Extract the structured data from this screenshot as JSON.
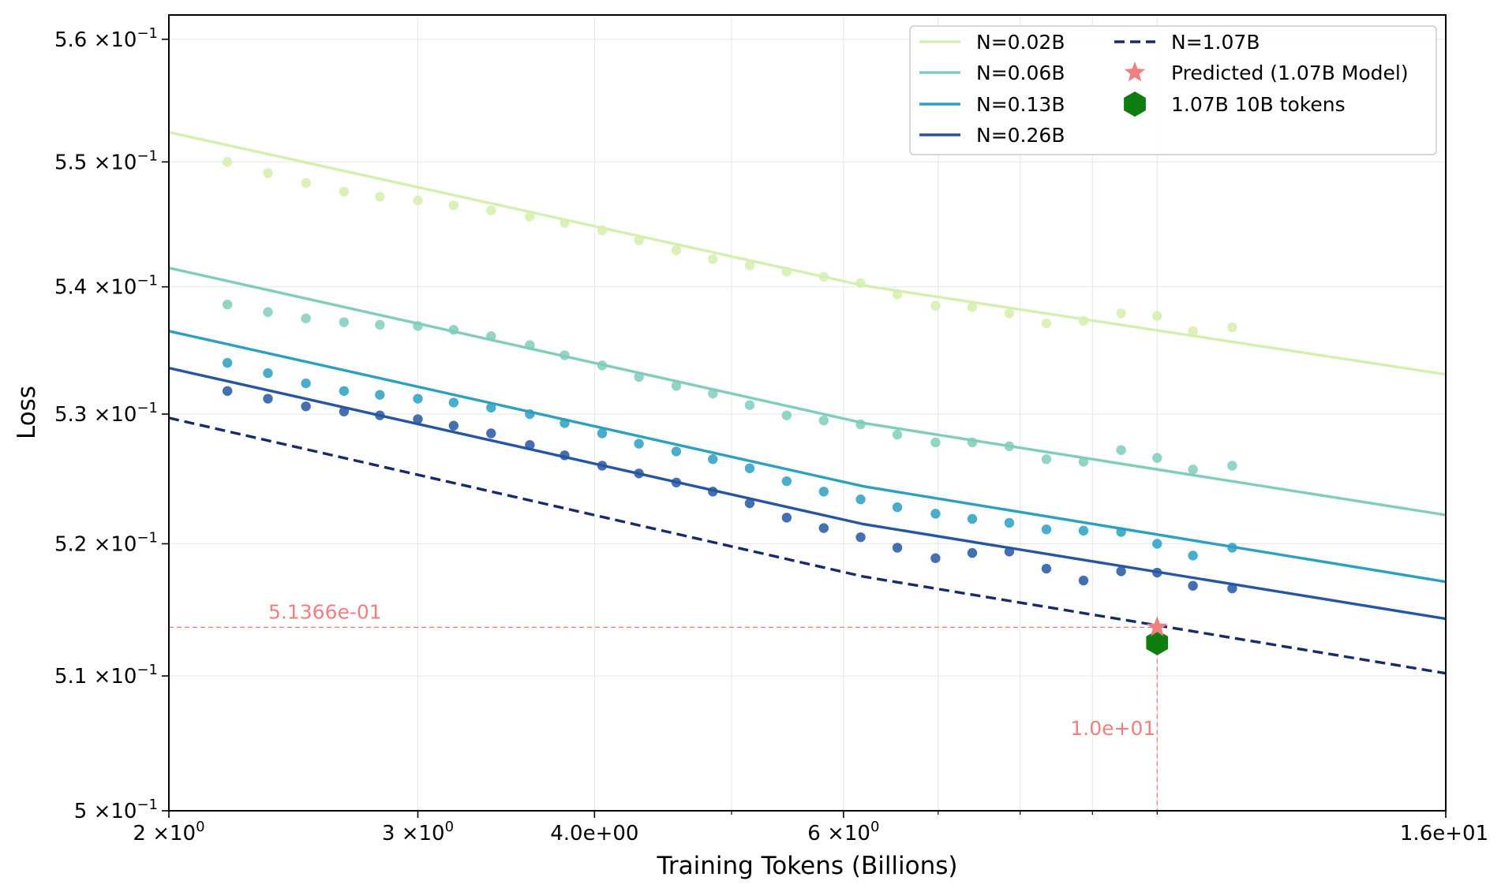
{
  "chart_data": {
    "type": "line",
    "xlabel": "Training Tokens (Billions)",
    "ylabel": "Loss",
    "xscale": "log",
    "yscale": "log",
    "xlim": [
      2,
      16
    ],
    "ylim": [
      0.5,
      0.562
    ],
    "grid": true,
    "legend_position": "top-right",
    "x_ticks": [
      {
        "value": 2,
        "base": "2",
        "exp": "0"
      },
      {
        "value": 3,
        "base": "3",
        "exp": "0"
      },
      {
        "value": 4,
        "label": "4.0e+00"
      },
      {
        "value": 6,
        "base": "6",
        "exp": "0"
      },
      {
        "value": 16,
        "label": "1.6e+01"
      }
    ],
    "x_minor_ticks": [
      5,
      7,
      8,
      9,
      10
    ],
    "y_ticks": [
      {
        "value": 0.5,
        "base": "5",
        "exp": "−1"
      },
      {
        "value": 0.51,
        "base": "5.1",
        "exp": "−1"
      },
      {
        "value": 0.52,
        "base": "5.2",
        "exp": "−1"
      },
      {
        "value": 0.53,
        "base": "5.3",
        "exp": "−1"
      },
      {
        "value": 0.54,
        "base": "5.4",
        "exp": "−1"
      },
      {
        "value": 0.55,
        "base": "5.5",
        "exp": "−1"
      },
      {
        "value": 0.56,
        "base": "5.6",
        "exp": "−1"
      }
    ],
    "times_symbol": "×",
    "series": [
      {
        "name": "N=0.02B",
        "color": "#d5efad",
        "style": "solid",
        "fit": {
          "x": [
            2,
            6.2,
            16
          ],
          "y": [
            0.5524,
            0.5401,
            0.5331
          ]
        },
        "points": {
          "x": [
            2.2,
            2.35,
            2.5,
            2.66,
            2.82,
            3.0,
            3.18,
            3.38,
            3.6,
            3.81,
            4.05,
            4.3,
            4.57,
            4.85,
            5.15,
            5.47,
            5.81,
            6.17,
            6.55,
            6.97,
            7.4,
            7.86,
            8.35,
            8.87,
            9.43,
            10.0,
            10.6,
            11.3
          ],
          "y": [
            0.55,
            0.5491,
            0.5483,
            0.5476,
            0.5472,
            0.5469,
            0.5465,
            0.5461,
            0.5456,
            0.5451,
            0.5445,
            0.5437,
            0.5429,
            0.5422,
            0.5417,
            0.5412,
            0.5408,
            0.5403,
            0.5394,
            0.5385,
            0.5384,
            0.5379,
            0.5371,
            0.5373,
            0.5379,
            0.5377,
            0.5365,
            0.5368
          ]
        }
      },
      {
        "name": "N=0.06B",
        "color": "#7fcdbb",
        "style": "solid",
        "fit": {
          "x": [
            2,
            6.2,
            16
          ],
          "y": [
            0.5415,
            0.5293,
            0.5222
          ]
        },
        "points": {
          "x": [
            2.2,
            2.35,
            2.5,
            2.66,
            2.82,
            3.0,
            3.18,
            3.38,
            3.6,
            3.81,
            4.05,
            4.3,
            4.57,
            4.85,
            5.15,
            5.47,
            5.81,
            6.17,
            6.55,
            6.97,
            7.4,
            7.86,
            8.35,
            8.87,
            9.43,
            10.0,
            10.6,
            11.3
          ],
          "y": [
            0.5386,
            0.538,
            0.5375,
            0.5372,
            0.537,
            0.5369,
            0.5366,
            0.5361,
            0.5354,
            0.5346,
            0.5338,
            0.5329,
            0.5322,
            0.5316,
            0.5307,
            0.5299,
            0.5295,
            0.5292,
            0.5284,
            0.5278,
            0.5278,
            0.5275,
            0.5265,
            0.5263,
            0.5272,
            0.5266,
            0.5257,
            0.526
          ]
        }
      },
      {
        "name": "N=0.13B",
        "color": "#2c9fc3",
        "style": "solid",
        "fit": {
          "x": [
            2,
            6.2,
            16
          ],
          "y": [
            0.5365,
            0.5244,
            0.5171
          ]
        },
        "points": {
          "x": [
            2.2,
            2.35,
            2.5,
            2.66,
            2.82,
            3.0,
            3.18,
            3.38,
            3.6,
            3.81,
            4.05,
            4.3,
            4.57,
            4.85,
            5.15,
            5.47,
            5.81,
            6.17,
            6.55,
            6.97,
            7.4,
            7.86,
            8.35,
            8.87,
            9.43,
            10.0,
            10.6,
            11.3
          ],
          "y": [
            0.534,
            0.5332,
            0.5324,
            0.5318,
            0.5315,
            0.5312,
            0.5309,
            0.5305,
            0.53,
            0.5293,
            0.5285,
            0.5277,
            0.5271,
            0.5265,
            0.5258,
            0.5248,
            0.524,
            0.5234,
            0.5228,
            0.5223,
            0.5219,
            0.5216,
            0.5211,
            0.521,
            0.5209,
            0.52,
            0.5191,
            0.5197
          ]
        }
      },
      {
        "name": "N=0.26B",
        "color": "#2556a2",
        "style": "solid",
        "fit": {
          "x": [
            2,
            6.2,
            16
          ],
          "y": [
            0.5336,
            0.5215,
            0.5143
          ]
        },
        "points": {
          "x": [
            2.2,
            2.35,
            2.5,
            2.66,
            2.82,
            3.0,
            3.18,
            3.38,
            3.6,
            3.81,
            4.05,
            4.3,
            4.57,
            4.85,
            5.15,
            5.47,
            5.81,
            6.17,
            6.55,
            6.97,
            7.4,
            7.86,
            8.35,
            8.87,
            9.43,
            10.0,
            10.6,
            11.3
          ],
          "y": [
            0.5318,
            0.5312,
            0.5306,
            0.5302,
            0.5299,
            0.5296,
            0.5291,
            0.5285,
            0.5276,
            0.5268,
            0.526,
            0.5254,
            0.5247,
            0.524,
            0.5231,
            0.522,
            0.5212,
            0.5205,
            0.5197,
            0.5189,
            0.5193,
            0.5194,
            0.5181,
            0.5172,
            0.5179,
            0.5178,
            0.5168,
            0.5166
          ]
        }
      },
      {
        "name": "N=1.07B",
        "color": "#162c6a",
        "style": "dashed",
        "fit": {
          "x": [
            2,
            6.2,
            16
          ],
          "y": [
            0.5297,
            0.5175,
            0.5102
          ]
        },
        "points": {
          "x": [],
          "y": []
        }
      }
    ],
    "markers": [
      {
        "name": "Predicted (1.07B Model)",
        "shape": "star",
        "color": "#f08080",
        "x": 10.0,
        "y": 0.51366
      },
      {
        "name": "1.07B 10B tokens",
        "shape": "hexagon",
        "color": "#0f7d0f",
        "x": 10.0,
        "y": 0.5125
      }
    ],
    "annotations": [
      {
        "text": "5.1366e-01",
        "kind": "hline",
        "value": 0.51366
      },
      {
        "text": "1.0e+01",
        "kind": "vline",
        "value": 10.0
      }
    ]
  }
}
